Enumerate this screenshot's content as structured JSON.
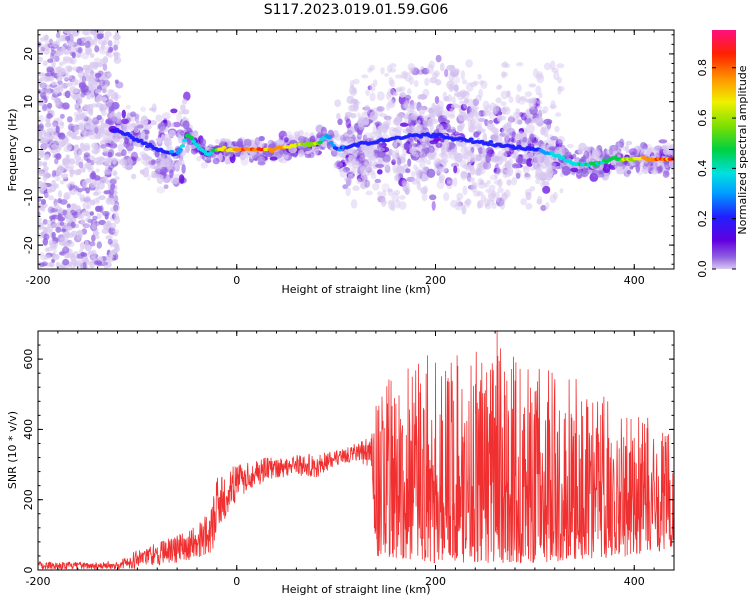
{
  "figure": {
    "title": "S117.2023.019.01.59.G06"
  },
  "chart_data": [
    {
      "type": "heatmap",
      "title": "S117.2023.019.01.59.G06",
      "xlabel": "Height of straight line (km)",
      "ylabel": "Frequency (Hz)",
      "xlim": [
        -200,
        440
      ],
      "ylim": [
        -25,
        25
      ],
      "x_ticks": [
        -200,
        0,
        200,
        400
      ],
      "x_tick_labels": [
        "-200",
        "0",
        "200",
        "400"
      ],
      "y_ticks": [
        -20,
        -10,
        0,
        10,
        20
      ],
      "y_tick_labels": [
        "-20",
        "-10",
        "0",
        "10",
        "20"
      ],
      "colorbar": {
        "label": "Normalized spectral amplitude",
        "range": [
          0,
          0.95
        ],
        "ticks": [
          0.0,
          0.2,
          0.4,
          0.6,
          0.8
        ],
        "tick_labels": [
          "0.0",
          "0.2",
          "0.4",
          "0.6",
          "0.8"
        ],
        "colormap": [
          "#d8c8f0",
          "#9060e0",
          "#6000e0",
          "#2020ff",
          "#00a0ff",
          "#00e0e0",
          "#00d040",
          "#80e000",
          "#f0f000",
          "#ff9000",
          "#ff2000",
          "#ff1080"
        ]
      },
      "ridge": {
        "x": [
          -120,
          -100,
          -80,
          -60,
          -50,
          -40,
          -30,
          -20,
          0,
          20,
          40,
          60,
          80,
          90,
          100,
          120,
          150,
          180,
          200,
          230,
          260,
          300,
          320,
          340,
          360,
          380,
          400,
          420,
          440
        ],
        "y": [
          4,
          2,
          0,
          -1,
          3,
          1,
          -1,
          0,
          0,
          0,
          0,
          1,
          1,
          3,
          0,
          1,
          2,
          3,
          3,
          2,
          1,
          0,
          -1,
          -3,
          -3,
          -2,
          -2,
          -2,
          -2
        ],
        "amplitude": [
          0.25,
          0.3,
          0.3,
          0.35,
          0.6,
          0.5,
          0.45,
          0.7,
          0.9,
          0.9,
          0.85,
          0.75,
          0.7,
          0.4,
          0.35,
          0.3,
          0.3,
          0.3,
          0.3,
          0.3,
          0.3,
          0.3,
          0.45,
          0.5,
          0.55,
          0.6,
          0.8,
          0.9,
          0.9
        ]
      },
      "spread_hz": [
        {
          "x_range": [
            -200,
            -130
          ],
          "y_range": [
            -25,
            25
          ],
          "level": "noise"
        },
        {
          "x_range": [
            -130,
            -50
          ],
          "y_range": [
            -17,
            12
          ],
          "level": "low"
        },
        {
          "x_range": [
            110,
            320
          ],
          "y_range": [
            -13,
            18
          ],
          "level": "low"
        }
      ],
      "grid": false
    },
    {
      "type": "line",
      "xlabel": "Height of straight line (km)",
      "ylabel": "SNR (10 * v/v)",
      "xlim": [
        -200,
        440
      ],
      "ylim": [
        0,
        680
      ],
      "x_ticks": [
        -200,
        0,
        200,
        400
      ],
      "x_tick_labels": [
        "-200",
        "0",
        "200",
        "400"
      ],
      "y_ticks": [
        0,
        200,
        400,
        600
      ],
      "y_tick_labels": [
        "0",
        "200",
        "400",
        "600"
      ],
      "color": "#f03030",
      "envelope": {
        "x": [
          -200,
          -150,
          -120,
          -100,
          -60,
          -40,
          -25,
          -20,
          0,
          20,
          40,
          60,
          80,
          100,
          120,
          135,
          140,
          200,
          260,
          300,
          350,
          400,
          440
        ],
        "low": [
          2,
          2,
          2,
          5,
          20,
          30,
          50,
          100,
          200,
          240,
          260,
          270,
          260,
          300,
          310,
          290,
          40,
          20,
          20,
          20,
          30,
          40,
          60
        ],
        "high": [
          25,
          22,
          25,
          60,
          100,
          130,
          180,
          270,
          300,
          320,
          320,
          330,
          330,
          340,
          360,
          380,
          520,
          640,
          640,
          580,
          540,
          460,
          380
        ]
      },
      "peak": {
        "x": 262,
        "y": 680
      },
      "grid": false
    }
  ]
}
